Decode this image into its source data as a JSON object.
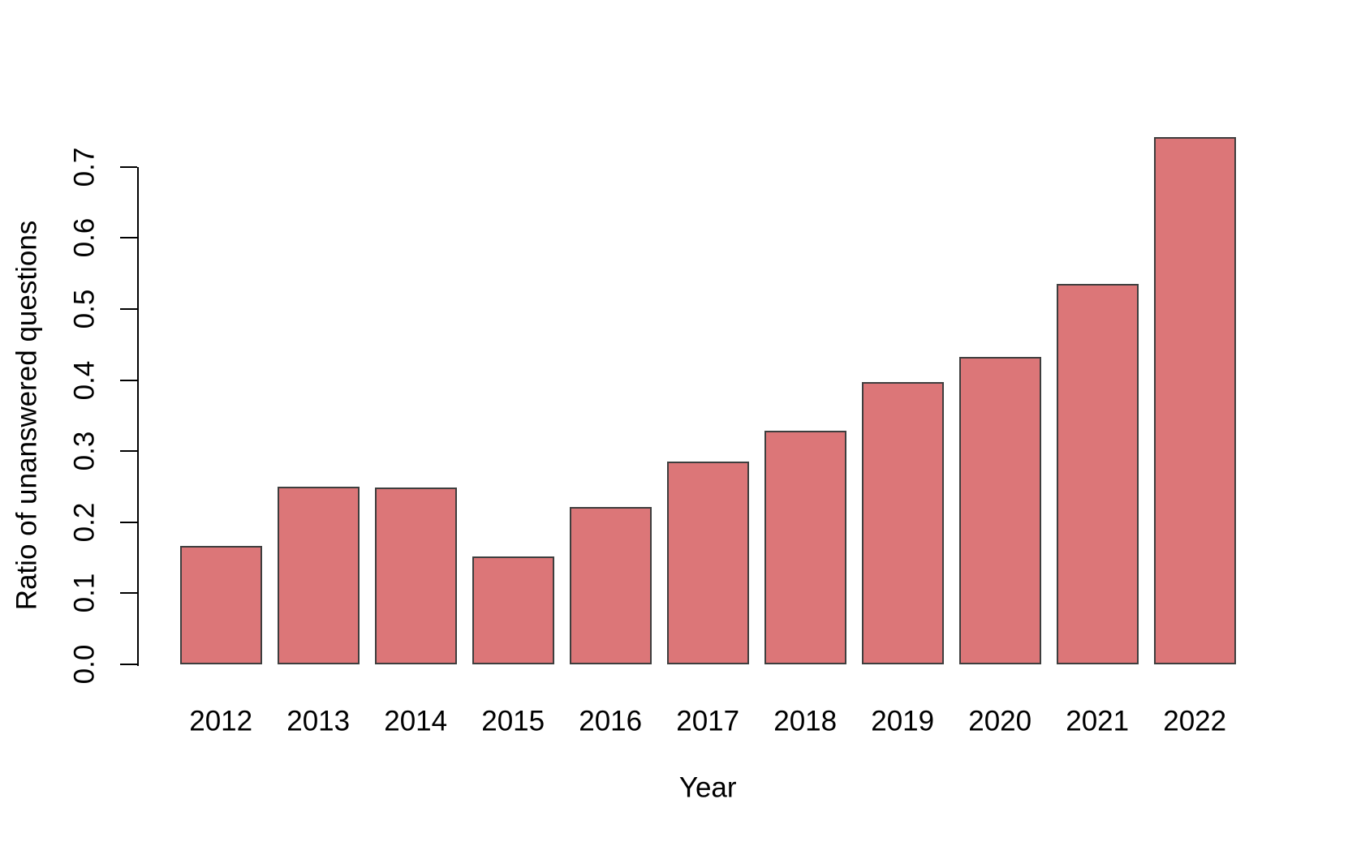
{
  "chart_data": {
    "type": "bar",
    "categories": [
      "2012",
      "2013",
      "2014",
      "2015",
      "2016",
      "2017",
      "2018",
      "2019",
      "2020",
      "2021",
      "2022"
    ],
    "values": [
      0.167,
      0.25,
      0.249,
      0.152,
      0.221,
      0.285,
      0.329,
      0.397,
      0.433,
      0.535,
      0.742
    ],
    "title": "",
    "xlabel": "Year",
    "ylabel": "Ratio of unanswered questions",
    "ylim": [
      0.0,
      0.742
    ],
    "ytick_labels": [
      "0.0",
      "0.1",
      "0.2",
      "0.3",
      "0.4",
      "0.5",
      "0.6",
      "0.7"
    ],
    "grid": false,
    "legend": false,
    "colors": {
      "bar_fill": "#DC7678",
      "bar_border": "#3E3E3E",
      "axis": "#000000",
      "text": "#000000",
      "background": "#FFFFFF"
    }
  }
}
